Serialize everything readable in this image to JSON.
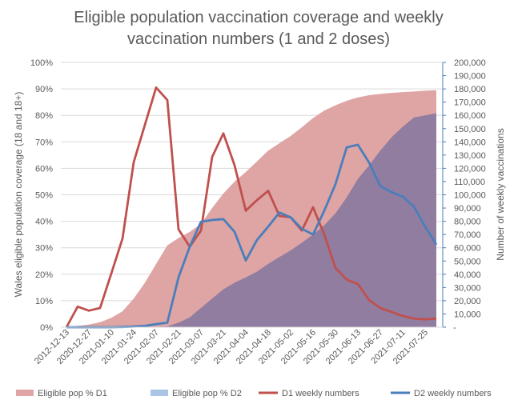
{
  "chart_data": {
    "type": "area+line",
    "title": "Eligible population vaccination coverage and weekly vaccination numbers (1 and 2 doses)",
    "title_lines": [
      "Eligible population vaccination coverage and weekly",
      "vaccination numbers (1 and 2 doses)"
    ],
    "ylabel_left": "Wales eligible population coverage (18 and 18+)",
    "ylabel_right": "Number of weekly vaccinations",
    "ylim_left": [
      0,
      100
    ],
    "ylim_right": [
      0,
      200000
    ],
    "yticks_left": [
      "0%",
      "10%",
      "20%",
      "30%",
      "40%",
      "50%",
      "60%",
      "70%",
      "80%",
      "90%",
      "100%"
    ],
    "yticks_right": [
      "-",
      "10,000",
      "20,000",
      "30,000",
      "40,000",
      "50,000",
      "60,000",
      "70,000",
      "80,000",
      "90,000",
      "100,000",
      "110,000",
      "120,000",
      "130,000",
      "140,000",
      "150,000",
      "160,000",
      "170,000",
      "180,000",
      "190,000",
      "200,000"
    ],
    "grid": true,
    "legend_position": "bottom",
    "x": [
      "2012-12-13",
      "2020-12-20",
      "2020-12-27",
      "2021-01-03",
      "2021-01-10",
      "2021-01-17",
      "2021-01-24",
      "2021-01-31",
      "2021-02-07",
      "2021-02-14",
      "2021-02-21",
      "2021-02-28",
      "2021-03-07",
      "2021-03-14",
      "2021-03-21",
      "2021-03-28",
      "2021-04-04",
      "2021-04-11",
      "2021-04-18",
      "2021-04-25",
      "2021-05-02",
      "2021-05-09",
      "2021-05-16",
      "2021-05-23",
      "2021-05-30",
      "2021-06-06",
      "2021-06-13",
      "2021-06-20",
      "2021-06-27",
      "2021-07-04",
      "2021-07-11",
      "2021-07-18",
      "2021-07-25",
      "2021-08-01"
    ],
    "x_label_every": 2,
    "series": [
      {
        "name": "Eligible pop % D1",
        "type": "area",
        "axis": "left",
        "color": "#dea5a4",
        "values": [
          0,
          0.5,
          1,
          1.9,
          3.5,
          6,
          10.8,
          16.8,
          23.9,
          30.9,
          33.7,
          36,
          39,
          45,
          50.5,
          55,
          58.6,
          62.6,
          66.7,
          69.5,
          72.2,
          75.5,
          79,
          81.8,
          83.8,
          85.5,
          86.8,
          87.6,
          88.1,
          88.5,
          88.8,
          89,
          89.3,
          89.5
        ]
      },
      {
        "name": "Eligible pop % D2",
        "type": "area",
        "axis": "left",
        "color": "#a9c4e4",
        "values": [
          0,
          0,
          0,
          0,
          0,
          0,
          0,
          0,
          0.1,
          0.3,
          1.7,
          3.7,
          7.3,
          10.8,
          14.3,
          16.8,
          18.8,
          21,
          23.9,
          26.5,
          29,
          31.9,
          35,
          38.5,
          43,
          49,
          56,
          61.1,
          66.7,
          71.7,
          75.7,
          79.2,
          80,
          80.8
        ]
      },
      {
        "name": "D1 weekly numbers",
        "type": "line",
        "axis": "right",
        "color": "#c0504d",
        "values": [
          0,
          15500,
          12500,
          14500,
          40500,
          66900,
          124600,
          152900,
          181000,
          171600,
          73900,
          60800,
          72900,
          128600,
          146400,
          122200,
          88000,
          96000,
          103000,
          84000,
          83000,
          73000,
          90600,
          70000,
          44700,
          36000,
          32600,
          20500,
          14500,
          11500,
          8500,
          6500,
          5900,
          6500
        ]
      },
      {
        "name": "D2 weekly numbers",
        "type": "line",
        "axis": "right",
        "color": "#4a7ebb",
        "values": [
          0,
          0,
          0,
          0,
          0,
          200,
          500,
          1000,
          2300,
          3500,
          37700,
          60800,
          79600,
          81000,
          81600,
          72000,
          50400,
          65900,
          76000,
          86600,
          83000,
          74300,
          70000,
          88000,
          108000,
          135800,
          137800,
          124300,
          106600,
          102000,
          98700,
          91000,
          76000,
          62400
        ]
      }
    ]
  }
}
